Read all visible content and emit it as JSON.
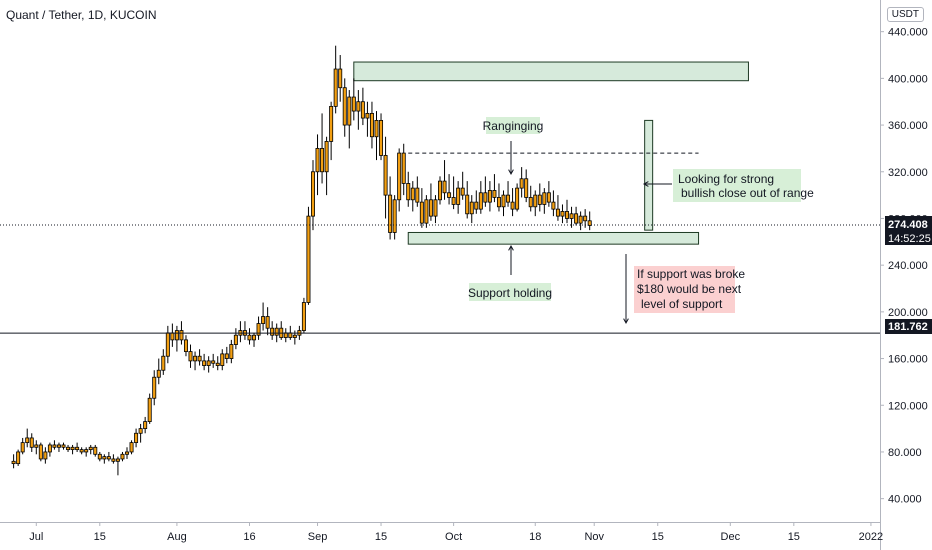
{
  "header": {
    "title": "Quant / Tether, 1D, KUCOIN",
    "currency_badge": "USDT"
  },
  "chart_data": {
    "type": "candlestick",
    "ylim": [
      20,
      450
    ],
    "y_ticks": [
      "440.000",
      "400.000",
      "360.000",
      "320.000",
      "280.000",
      "240.000",
      "200.000",
      "160.000",
      "120.000",
      "80.000",
      "40.000"
    ],
    "y_tick_values": [
      440,
      400,
      360,
      320,
      280,
      240,
      200,
      160,
      120,
      80,
      40
    ],
    "x_tick_labels": [
      "Jul",
      "15",
      "Aug",
      "16",
      "Sep",
      "15",
      "Oct",
      "18",
      "Nov",
      "15",
      "Dec",
      "15",
      "2022"
    ],
    "x_tick_days": [
      0,
      14,
      31,
      47,
      62,
      76,
      92,
      110,
      123,
      137,
      153,
      167,
      184
    ],
    "day_range": [
      -8,
      186
    ],
    "last_price": {
      "label": "274.408",
      "value": 274.408,
      "countdown": "14:52:25"
    },
    "support_line": {
      "label": "181.762",
      "value": 181.762
    },
    "range_top_dashed": 336,
    "zones": [
      {
        "day_from": 70,
        "day_to": 157,
        "low": 398,
        "high": 414
      },
      {
        "day_from": 82,
        "day_to": 146,
        "low": 258,
        "high": 268
      }
    ],
    "target_bar": {
      "day": 135,
      "low": 270,
      "high": 364
    },
    "candles": [
      [
        -5,
        72,
        78,
        66,
        70
      ],
      [
        -4,
        70,
        82,
        68,
        80
      ],
      [
        -3,
        80,
        92,
        78,
        88
      ],
      [
        -2,
        88,
        100,
        84,
        92
      ],
      [
        -1,
        92,
        96,
        80,
        84
      ],
      [
        0,
        84,
        90,
        78,
        86
      ],
      [
        1,
        86,
        88,
        72,
        74
      ],
      [
        2,
        74,
        84,
        70,
        80
      ],
      [
        3,
        80,
        88,
        76,
        86
      ],
      [
        4,
        86,
        90,
        82,
        84
      ],
      [
        5,
        84,
        88,
        80,
        86
      ],
      [
        6,
        86,
        88,
        82,
        84
      ],
      [
        7,
        84,
        86,
        80,
        82
      ],
      [
        8,
        82,
        86,
        78,
        84
      ],
      [
        9,
        84,
        88,
        80,
        82
      ],
      [
        10,
        82,
        84,
        78,
        80
      ],
      [
        11,
        80,
        84,
        76,
        82
      ],
      [
        12,
        82,
        86,
        78,
        84
      ],
      [
        13,
        84,
        86,
        76,
        78
      ],
      [
        14,
        78,
        80,
        72,
        74
      ],
      [
        15,
        74,
        78,
        70,
        76
      ],
      [
        16,
        76,
        80,
        72,
        74
      ],
      [
        17,
        74,
        78,
        70,
        72
      ],
      [
        18,
        72,
        76,
        60,
        74
      ],
      [
        19,
        74,
        80,
        72,
        78
      ],
      [
        20,
        78,
        84,
        74,
        80
      ],
      [
        21,
        80,
        90,
        78,
        88
      ],
      [
        22,
        88,
        100,
        84,
        96
      ],
      [
        23,
        96,
        104,
        88,
        100
      ],
      [
        24,
        100,
        110,
        96,
        106
      ],
      [
        25,
        106,
        130,
        104,
        126
      ],
      [
        26,
        126,
        150,
        120,
        144
      ],
      [
        27,
        144,
        160,
        138,
        150
      ],
      [
        28,
        150,
        168,
        146,
        162
      ],
      [
        29,
        162,
        188,
        156,
        182
      ],
      [
        30,
        182,
        190,
        170,
        176
      ],
      [
        31,
        176,
        188,
        166,
        184
      ],
      [
        32,
        184,
        192,
        172,
        176
      ],
      [
        33,
        176,
        180,
        162,
        166
      ],
      [
        34,
        166,
        172,
        152,
        158
      ],
      [
        35,
        158,
        166,
        150,
        162
      ],
      [
        36,
        162,
        168,
        154,
        158
      ],
      [
        37,
        158,
        164,
        150,
        154
      ],
      [
        38,
        154,
        162,
        148,
        158
      ],
      [
        39,
        158,
        164,
        152,
        156
      ],
      [
        40,
        156,
        162,
        150,
        154
      ],
      [
        41,
        154,
        168,
        150,
        164
      ],
      [
        42,
        164,
        170,
        156,
        160
      ],
      [
        43,
        160,
        176,
        156,
        172
      ],
      [
        44,
        172,
        186,
        168,
        180
      ],
      [
        45,
        180,
        192,
        174,
        184
      ],
      [
        46,
        184,
        192,
        176,
        180
      ],
      [
        47,
        180,
        186,
        172,
        176
      ],
      [
        48,
        176,
        182,
        170,
        180
      ],
      [
        49,
        180,
        196,
        176,
        190
      ],
      [
        50,
        190,
        208,
        184,
        196
      ],
      [
        51,
        196,
        204,
        180,
        186
      ],
      [
        52,
        186,
        192,
        176,
        180
      ],
      [
        53,
        180,
        190,
        174,
        186
      ],
      [
        54,
        186,
        192,
        176,
        178
      ],
      [
        55,
        178,
        186,
        174,
        182
      ],
      [
        56,
        182,
        188,
        176,
        178
      ],
      [
        57,
        178,
        184,
        172,
        180
      ],
      [
        58,
        180,
        188,
        176,
        184
      ],
      [
        59,
        184,
        212,
        182,
        208
      ],
      [
        60,
        208,
        290,
        206,
        282
      ],
      [
        61,
        282,
        330,
        270,
        320
      ],
      [
        62,
        320,
        352,
        300,
        340
      ],
      [
        63,
        340,
        370,
        310,
        320
      ],
      [
        64,
        320,
        350,
        300,
        346
      ],
      [
        65,
        346,
        380,
        330,
        376
      ],
      [
        66,
        376,
        428,
        370,
        408
      ],
      [
        67,
        408,
        420,
        380,
        392
      ],
      [
        68,
        392,
        400,
        350,
        360
      ],
      [
        69,
        360,
        390,
        340,
        384
      ],
      [
        70,
        384,
        400,
        364,
        372
      ],
      [
        71,
        372,
        390,
        356,
        380
      ],
      [
        72,
        380,
        392,
        360,
        366
      ],
      [
        73,
        366,
        380,
        350,
        370
      ],
      [
        74,
        370,
        380,
        340,
        350
      ],
      [
        75,
        350,
        372,
        330,
        364
      ],
      [
        76,
        364,
        370,
        330,
        334
      ],
      [
        77,
        334,
        350,
        280,
        300
      ],
      [
        78,
        300,
        316,
        262,
        268
      ],
      [
        79,
        268,
        300,
        262,
        296
      ],
      [
        80,
        296,
        340,
        286,
        336
      ],
      [
        81,
        336,
        344,
        300,
        310
      ],
      [
        82,
        310,
        320,
        290,
        296
      ],
      [
        83,
        296,
        312,
        286,
        306
      ],
      [
        84,
        306,
        316,
        290,
        294
      ],
      [
        85,
        294,
        306,
        272,
        276
      ],
      [
        86,
        276,
        300,
        272,
        296
      ],
      [
        87,
        296,
        310,
        278,
        282
      ],
      [
        88,
        282,
        300,
        276,
        296
      ],
      [
        89,
        296,
        316,
        292,
        312
      ],
      [
        90,
        312,
        330,
        296,
        302
      ],
      [
        91,
        302,
        318,
        292,
        298
      ],
      [
        92,
        298,
        316,
        288,
        292
      ],
      [
        93,
        292,
        312,
        284,
        306
      ],
      [
        94,
        306,
        320,
        296,
        300
      ],
      [
        95,
        300,
        312,
        280,
        284
      ],
      [
        96,
        284,
        300,
        276,
        294
      ],
      [
        97,
        294,
        304,
        284,
        288
      ],
      [
        98,
        288,
        312,
        284,
        302
      ],
      [
        99,
        302,
        316,
        290,
        294
      ],
      [
        100,
        294,
        312,
        286,
        304
      ],
      [
        101,
        304,
        318,
        294,
        298
      ],
      [
        102,
        298,
        310,
        286,
        290
      ],
      [
        103,
        290,
        304,
        282,
        300
      ],
      [
        104,
        300,
        312,
        290,
        294
      ],
      [
        105,
        294,
        306,
        282,
        288
      ],
      [
        106,
        288,
        310,
        286,
        306
      ],
      [
        107,
        306,
        324,
        298,
        314
      ],
      [
        108,
        314,
        322,
        294,
        298
      ],
      [
        109,
        298,
        308,
        286,
        290
      ],
      [
        110,
        290,
        304,
        282,
        300
      ],
      [
        111,
        300,
        310,
        286,
        292
      ],
      [
        112,
        292,
        306,
        284,
        302
      ],
      [
        113,
        302,
        312,
        290,
        294
      ],
      [
        114,
        294,
        304,
        282,
        288
      ],
      [
        115,
        288,
        300,
        278,
        282
      ],
      [
        116,
        282,
        292,
        276,
        286
      ],
      [
        117,
        286,
        296,
        276,
        280
      ],
      [
        118,
        280,
        290,
        272,
        284
      ],
      [
        119,
        284,
        290,
        274,
        276
      ],
      [
        120,
        276,
        286,
        270,
        282
      ],
      [
        121,
        282,
        288,
        272,
        278
      ],
      [
        122,
        278,
        286,
        270,
        274
      ]
    ]
  },
  "annotations": {
    "ranging": "Ranginging",
    "support": "Support holding",
    "strong_1": "Looking for strong",
    "strong_2": "bullish close out of range",
    "sup_1": "If support was broke",
    "sup_2": "$180 would be next",
    "sup_3": "level of support"
  },
  "colors": {
    "bull": "#f29f12",
    "bear": "#f29f12",
    "wick": "#000000",
    "zone_fill": "#d6eadb",
    "zone_stroke": "#1e3a24",
    "green_note": "#d7efd7",
    "red_note": "#fbd0d0",
    "grid": "#e0e3eb",
    "text": "#131722"
  }
}
